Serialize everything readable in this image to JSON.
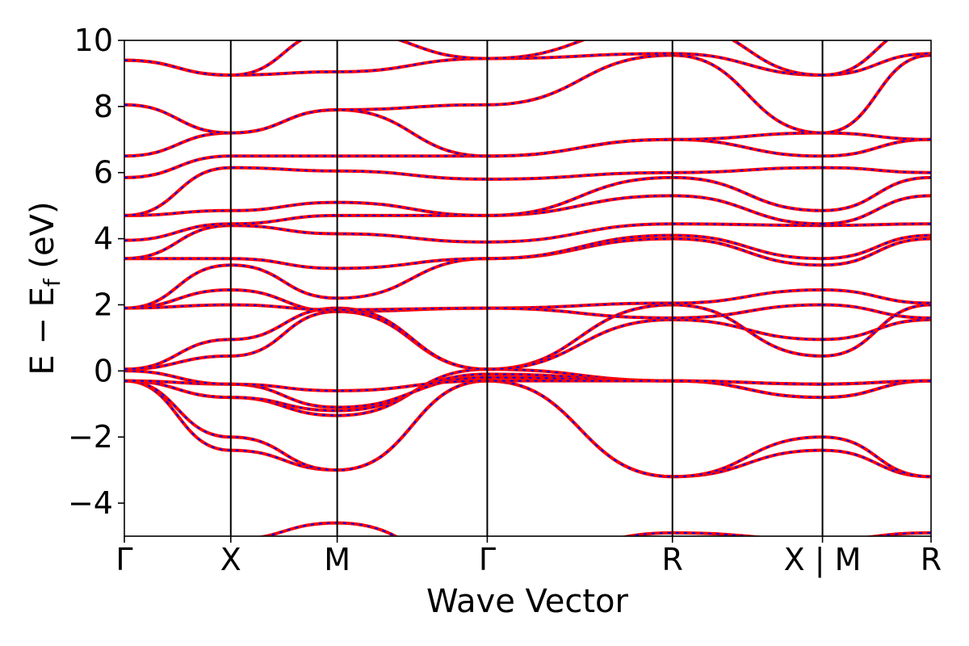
{
  "chart_data": {
    "type": "line",
    "title": "",
    "xlabel": "Wave Vector",
    "ylabel": "E − E_f (eV)",
    "ylabel_parts": {
      "pre": "E − E",
      "sub": "f",
      "post": " (eV)"
    },
    "ylim": [
      -5,
      10
    ],
    "yticks": [
      -4,
      -2,
      0,
      2,
      4,
      6,
      8,
      10
    ],
    "ytick_labels": [
      "−4",
      "−2",
      "0",
      "2",
      "4",
      "6",
      "8",
      "10"
    ],
    "xlim": [
      0,
      7.58
    ],
    "kpoint_positions": [
      0,
      1,
      2,
      3.41,
      5.15,
      6.56,
      7.58
    ],
    "kpoint_labels": [
      "Γ",
      "X",
      "M",
      "Γ",
      "R",
      "X | M",
      "R"
    ],
    "segment_breaks": [
      6.56
    ],
    "grid": false,
    "legend": "none",
    "colors": {
      "overlay": "#ff0000",
      "underlay": "#0000ff",
      "divider": "#000000"
    },
    "series": [
      {
        "x": [
          0,
          1,
          2,
          3.41,
          5.15,
          6.56,
          7.58
        ],
        "y": [
          -0.3,
          -2.4,
          -3.0,
          -0.3,
          -3.2,
          -2.4,
          -3.2
        ]
      },
      {
        "x": [
          0,
          1,
          2,
          3.41,
          5.15,
          6.56,
          7.58
        ],
        "y": [
          -0.3,
          -2.0,
          -3.0,
          -0.3,
          -3.2,
          -2.0,
          -3.2
        ]
      },
      {
        "x": [
          0,
          1,
          2,
          3.41,
          5.15,
          6.56,
          7.58
        ],
        "y": [
          -0.3,
          -0.8,
          -1.35,
          0.05,
          -0.3,
          -0.8,
          -0.3
        ]
      },
      {
        "x": [
          0,
          1,
          2,
          3.41,
          5.15,
          6.56,
          7.58
        ],
        "y": [
          -0.3,
          -0.8,
          -1.2,
          -0.1,
          -0.3,
          -0.8,
          -0.3
        ]
      },
      {
        "x": [
          0,
          1,
          2,
          3.41,
          5.15,
          6.56,
          7.58
        ],
        "y": [
          -0.3,
          -0.4,
          -1.1,
          -0.2,
          -0.3,
          -0.4,
          -0.3
        ]
      },
      {
        "x": [
          0,
          1,
          2,
          3.41,
          5.15,
          6.56,
          7.58
        ],
        "y": [
          0.0,
          -0.4,
          -0.6,
          -0.3,
          -0.3,
          -0.4,
          -0.3
        ]
      },
      {
        "x": [
          0,
          1,
          2,
          3.41,
          5.15,
          6.56,
          7.58
        ],
        "y": [
          0.05,
          0.45,
          1.8,
          0.05,
          2.0,
          0.45,
          2.0
        ]
      },
      {
        "x": [
          0,
          1,
          2,
          3.41,
          5.15,
          6.56,
          7.58
        ],
        "y": [
          0.05,
          0.95,
          1.9,
          0.05,
          1.55,
          0.95,
          1.55
        ]
      },
      {
        "x": [
          0,
          1,
          2,
          3.41,
          5.15,
          6.56,
          7.58
        ],
        "y": [
          1.9,
          2.45,
          1.8,
          1.9,
          2.05,
          2.45,
          2.05
        ]
      },
      {
        "x": [
          0,
          1,
          2,
          3.41,
          5.15,
          6.56,
          7.58
        ],
        "y": [
          1.9,
          2.0,
          1.85,
          1.9,
          1.6,
          2.0,
          1.6
        ]
      },
      {
        "x": [
          0,
          1,
          2,
          3.41,
          5.15,
          6.56,
          7.58
        ],
        "y": [
          1.9,
          3.2,
          2.2,
          3.4,
          4.0,
          3.2,
          4.0
        ]
      },
      {
        "x": [
          0,
          1,
          2,
          3.41,
          5.15,
          6.56,
          7.58
        ],
        "y": [
          3.4,
          3.4,
          3.1,
          3.4,
          4.1,
          3.4,
          4.1
        ]
      },
      {
        "x": [
          0,
          1,
          2,
          3.41,
          5.15,
          6.56,
          7.58
        ],
        "y": [
          3.4,
          4.4,
          4.15,
          3.9,
          4.45,
          4.4,
          4.45
        ]
      },
      {
        "x": [
          0,
          1,
          2,
          3.41,
          5.15,
          6.56,
          7.58
        ],
        "y": [
          3.95,
          4.45,
          4.7,
          4.7,
          5.3,
          4.45,
          5.3
        ]
      },
      {
        "x": [
          0,
          1,
          2,
          3.41,
          5.15,
          6.56,
          7.58
        ],
        "y": [
          4.7,
          4.85,
          5.1,
          4.7,
          5.85,
          4.85,
          5.85
        ]
      },
      {
        "x": [
          0,
          1,
          2,
          3.41,
          5.15,
          6.56,
          7.58
        ],
        "y": [
          4.7,
          6.15,
          6.05,
          5.8,
          6.0,
          6.15,
          6.0
        ]
      },
      {
        "x": [
          0,
          1,
          2,
          3.41,
          5.15,
          6.56,
          7.58
        ],
        "y": [
          5.85,
          6.5,
          6.5,
          6.5,
          7.0,
          6.5,
          7.0
        ]
      },
      {
        "x": [
          0,
          1,
          2,
          3.41,
          5.15,
          6.56,
          7.58
        ],
        "y": [
          6.5,
          7.2,
          7.9,
          6.5,
          7.0,
          7.2,
          7.0
        ]
      },
      {
        "x": [
          0,
          1,
          2,
          3.41,
          5.15,
          6.56,
          7.58
        ],
        "y": [
          8.05,
          7.2,
          7.9,
          8.05,
          9.55,
          7.2,
          9.55
        ]
      },
      {
        "x": [
          0,
          1,
          2,
          3.41,
          5.15,
          6.56,
          7.58
        ],
        "y": [
          9.4,
          8.95,
          9.05,
          9.45,
          9.6,
          8.95,
          9.6
        ]
      },
      {
        "x": [
          0,
          1,
          2,
          3.41,
          5.15,
          6.56,
          7.58
        ],
        "y": [
          9.4,
          8.95,
          10.3,
          9.45,
          10.5,
          8.95,
          10.5
        ]
      },
      {
        "x": [
          0,
          1,
          2,
          3.41,
          5.15,
          6.56,
          7.58
        ],
        "y": [
          -6.0,
          -5.1,
          -4.6,
          -6.0,
          -4.9,
          -5.1,
          -4.9
        ]
      }
    ]
  }
}
